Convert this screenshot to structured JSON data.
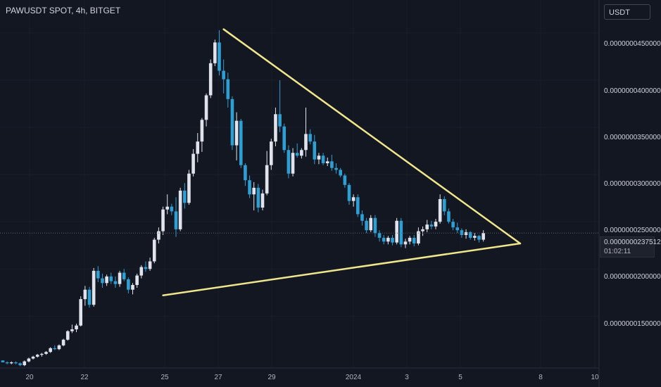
{
  "header": {
    "symbol": "PAWUSDT SPOT, 4h, BITGET"
  },
  "currency_button": {
    "label": "USDT"
  },
  "price_axis": {
    "labels": [
      "0.0000000450000",
      "0.0000000400000",
      "0.0000000350000",
      "0.0000000300000",
      "0.0000000250000",
      "0.0000000200000",
      "0.0000000150000"
    ]
  },
  "current_price": {
    "value": "0.0000000237512",
    "countdown": "01:02:11",
    "line_color": "#5d606b"
  },
  "time_axis": {
    "labels": [
      "20",
      "22",
      "25",
      "27",
      "29",
      "2024",
      "3",
      "5",
      "8",
      "10"
    ]
  },
  "colors": {
    "background": "#131722",
    "up_candle": "#e0e3eb",
    "down_candle": "#2d9fd3",
    "trendline": "#f0e68c",
    "grid": "#1a1e29"
  },
  "chart_data": {
    "type": "candlestick",
    "series": [
      {
        "name": "",
        "ohlc": [
          [
            10.3,
            10.3,
            10.1,
            10.1
          ],
          [
            10.1,
            10.2,
            9.9,
            10.0
          ],
          [
            10.0,
            10.2,
            9.9,
            10.1
          ],
          [
            10.1,
            10.2,
            9.9,
            10.0
          ],
          [
            10.0,
            10.1,
            9.7,
            9.8
          ],
          [
            9.8,
            10.3,
            9.7,
            10.2
          ],
          [
            10.2,
            10.6,
            10.1,
            10.5
          ],
          [
            10.5,
            10.8,
            10.4,
            10.7
          ],
          [
            10.7,
            11.0,
            10.6,
            10.9
          ],
          [
            10.9,
            11.1,
            10.7,
            11.0
          ],
          [
            11.0,
            11.3,
            10.9,
            11.2
          ],
          [
            11.2,
            11.7,
            11.1,
            11.6
          ],
          [
            11.6,
            11.9,
            11.4,
            11.5
          ],
          [
            11.5,
            12.0,
            11.4,
            11.9
          ],
          [
            11.9,
            12.6,
            11.8,
            12.5
          ],
          [
            12.5,
            13.5,
            12.4,
            13.4
          ],
          [
            13.4,
            14.1,
            13.2,
            13.6
          ],
          [
            13.6,
            14.2,
            13.3,
            14.0
          ],
          [
            14.0,
            17.1,
            13.9,
            16.8
          ],
          [
            16.8,
            18.2,
            16.1,
            17.8
          ],
          [
            17.8,
            18.1,
            15.9,
            16.2
          ],
          [
            16.2,
            20.1,
            16.0,
            19.8
          ],
          [
            19.8,
            20.3,
            18.6,
            19.0
          ],
          [
            19.0,
            19.5,
            18.0,
            18.5
          ],
          [
            18.5,
            19.4,
            18.2,
            19.2
          ],
          [
            19.2,
            19.6,
            18.4,
            18.7
          ],
          [
            18.7,
            19.2,
            18.0,
            18.4
          ],
          [
            18.4,
            19.8,
            18.1,
            19.6
          ],
          [
            19.6,
            20.0,
            18.7,
            18.9
          ],
          [
            18.9,
            19.1,
            17.4,
            17.8
          ],
          [
            17.8,
            18.5,
            17.3,
            18.3
          ],
          [
            18.3,
            19.5,
            18.0,
            19.3
          ],
          [
            19.3,
            20.4,
            19.0,
            20.2
          ],
          [
            20.2,
            20.8,
            19.7,
            20.0
          ],
          [
            20.0,
            21.2,
            19.8,
            20.8
          ],
          [
            20.8,
            23.3,
            20.6,
            23.1
          ],
          [
            23.1,
            24.4,
            22.7,
            24.0
          ],
          [
            24.0,
            26.6,
            23.6,
            26.3
          ],
          [
            26.3,
            27.9,
            25.8,
            26.6
          ],
          [
            26.6,
            26.9,
            25.7,
            26.1
          ],
          [
            26.1,
            27.6,
            23.4,
            24.2
          ],
          [
            24.2,
            28.6,
            24.0,
            28.3
          ],
          [
            28.3,
            29.1,
            26.4,
            27.0
          ],
          [
            27.0,
            30.5,
            26.8,
            30.1
          ],
          [
            30.1,
            32.7,
            29.8,
            32.2
          ],
          [
            32.2,
            34.4,
            31.3,
            33.5
          ],
          [
            33.5,
            36.0,
            32.4,
            35.8
          ],
          [
            35.8,
            38.6,
            35.1,
            38.4
          ],
          [
            38.4,
            42.2,
            38.1,
            41.8
          ],
          [
            41.8,
            44.3,
            41.5,
            44.0
          ],
          [
            44.0,
            45.3,
            40.5,
            41.0
          ],
          [
            41.0,
            42.2,
            38.6,
            40.1
          ],
          [
            40.1,
            40.8,
            37.1,
            38.0
          ],
          [
            38.0,
            38.3,
            32.6,
            33.1
          ],
          [
            33.1,
            36.6,
            31.5,
            35.7
          ],
          [
            35.7,
            35.9,
            30.7,
            31.0
          ],
          [
            31.0,
            31.2,
            28.8,
            29.4
          ],
          [
            29.4,
            29.9,
            27.5,
            27.9
          ],
          [
            27.9,
            29.2,
            26.2,
            28.6
          ],
          [
            28.6,
            29.0,
            26.0,
            26.5
          ],
          [
            26.5,
            28.4,
            26.2,
            28.0
          ],
          [
            28.0,
            32.5,
            27.8,
            31.0
          ],
          [
            31.0,
            33.8,
            30.5,
            33.5
          ],
          [
            33.5,
            37.1,
            33.0,
            36.4
          ],
          [
            36.4,
            40.0,
            34.5,
            35.1
          ],
          [
            35.1,
            35.4,
            32.3,
            32.6
          ],
          [
            32.6,
            33.1,
            29.6,
            30.1
          ],
          [
            30.1,
            32.8,
            29.8,
            32.3
          ],
          [
            32.3,
            33.3,
            31.8,
            32.0
          ],
          [
            32.0,
            32.8,
            31.7,
            32.6
          ],
          [
            32.6,
            37.1,
            31.9,
            34.3
          ],
          [
            34.3,
            34.8,
            33.2,
            33.5
          ],
          [
            33.5,
            34.2,
            31.1,
            31.6
          ],
          [
            31.6,
            32.3,
            31.1,
            32.0
          ],
          [
            32.0,
            32.3,
            31.0,
            31.2
          ],
          [
            31.2,
            31.8,
            30.9,
            31.4
          ],
          [
            31.4,
            32.1,
            30.4,
            30.7
          ],
          [
            30.7,
            31.2,
            30.1,
            30.5
          ],
          [
            30.5,
            30.7,
            29.7,
            29.9
          ],
          [
            29.9,
            30.1,
            28.6,
            28.9
          ],
          [
            28.9,
            29.1,
            26.8,
            27.2
          ],
          [
            27.2,
            27.9,
            26.6,
            27.6
          ],
          [
            27.6,
            27.9,
            25.5,
            25.8
          ],
          [
            25.8,
            26.2,
            24.6,
            25.1
          ],
          [
            25.1,
            25.4,
            23.8,
            24.1
          ],
          [
            24.1,
            25.7,
            23.9,
            25.4
          ],
          [
            25.4,
            25.7,
            23.4,
            23.8
          ],
          [
            23.8,
            24.1,
            22.9,
            23.3
          ],
          [
            23.3,
            23.6,
            22.6,
            22.9
          ],
          [
            22.9,
            23.5,
            22.6,
            23.3
          ],
          [
            23.3,
            23.6,
            22.5,
            22.8
          ],
          [
            22.8,
            25.4,
            22.6,
            25.1
          ],
          [
            25.1,
            25.4,
            22.3,
            22.6
          ],
          [
            22.6,
            23.2,
            22.2,
            22.9
          ],
          [
            22.9,
            23.5,
            22.6,
            23.3
          ],
          [
            23.3,
            23.6,
            22.4,
            22.7
          ],
          [
            22.7,
            24.4,
            22.5,
            24.0
          ],
          [
            24.0,
            24.5,
            23.5,
            24.2
          ],
          [
            24.2,
            25.2,
            23.9,
            24.7
          ],
          [
            24.7,
            25.1,
            24.2,
            24.5
          ],
          [
            24.5,
            25.3,
            24.2,
            25.0
          ],
          [
            25.0,
            27.9,
            24.8,
            27.4
          ],
          [
            27.4,
            27.7,
            25.7,
            26.1
          ],
          [
            26.1,
            26.4,
            24.8,
            25.0
          ],
          [
            25.0,
            25.3,
            24.1,
            24.4
          ],
          [
            24.4,
            24.9,
            23.8,
            24.1
          ],
          [
            24.1,
            24.3,
            23.3,
            23.6
          ],
          [
            23.6,
            24.2,
            23.2,
            23.9
          ],
          [
            23.9,
            24.0,
            23.1,
            23.3
          ],
          [
            23.3,
            23.8,
            23.0,
            23.5
          ],
          [
            23.5,
            23.6,
            22.8,
            23.1
          ],
          [
            23.1,
            24.1,
            22.9,
            23.8
          ]
        ]
      }
    ],
    "y_scale_unit": "1e-9 USDT",
    "ylim": [
      9.5,
      48.5
    ],
    "trendlines": [
      {
        "from": {
          "candle": 51,
          "price": 45.4
        },
        "to": {
          "candle": 119.5,
          "price": 22.7
        }
      },
      {
        "from": {
          "candle": 37,
          "price": 17.2
        },
        "to": {
          "candle": 119.5,
          "price": 22.7
        }
      }
    ]
  }
}
